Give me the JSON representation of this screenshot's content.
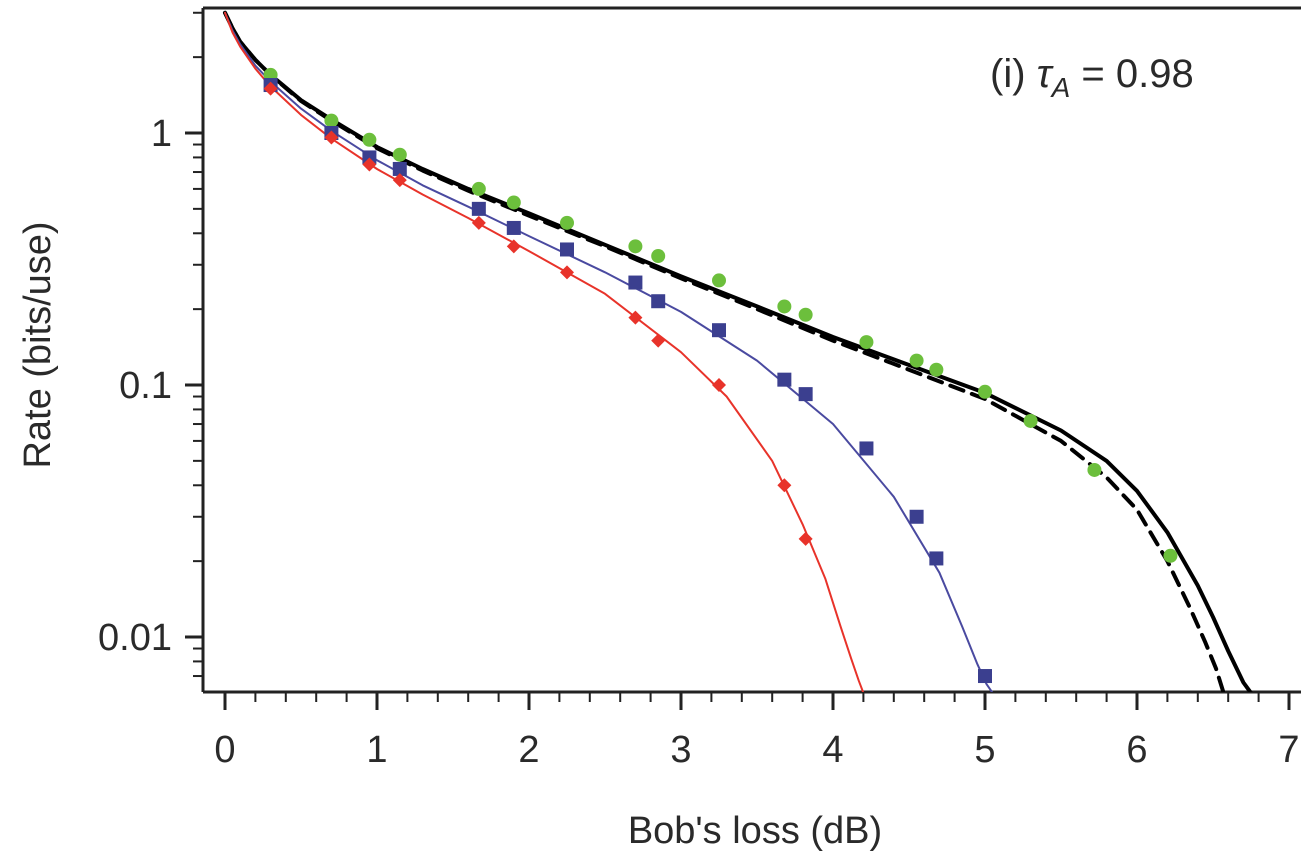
{
  "chart_data": {
    "type": "scatter",
    "title": "",
    "xlabel": "Bob's loss (dB)",
    "ylabel": "Rate (bits/use)",
    "xlim": [
      0,
      7
    ],
    "ylim": [
      0.006,
      3.0
    ],
    "yscale": "log",
    "grid": false,
    "x_ticks": [
      "0",
      "1",
      "2",
      "3",
      "4",
      "5",
      "6",
      "7"
    ],
    "y_ticks": [
      "0.01",
      "0.1",
      "1"
    ],
    "annotation": {
      "prefix": "(i) ",
      "symbol": "τ",
      "subscript": "A",
      "suffix": " = 0.98"
    },
    "series": [
      {
        "kind": "line",
        "color": "#000000",
        "dash": "solid",
        "x": [
          0.0,
          0.05,
          0.1,
          0.2,
          0.3,
          0.5,
          0.7,
          1.0,
          1.3,
          1.6,
          2.0,
          2.5,
          3.0,
          3.5,
          4.0,
          4.5,
          5.0,
          5.5,
          5.8,
          6.0,
          6.2,
          6.4,
          6.5,
          6.6,
          6.7,
          6.75
        ],
        "y": [
          3.0,
          2.6,
          2.3,
          1.95,
          1.7,
          1.35,
          1.13,
          0.88,
          0.72,
          0.6,
          0.48,
          0.36,
          0.27,
          0.205,
          0.155,
          0.12,
          0.093,
          0.066,
          0.05,
          0.038,
          0.026,
          0.016,
          0.012,
          0.0088,
          0.0066,
          0.006
        ]
      },
      {
        "kind": "line",
        "color": "#000000",
        "dash": "dashed",
        "x": [
          0.0,
          0.05,
          0.1,
          0.2,
          0.3,
          0.5,
          0.7,
          1.0,
          1.3,
          1.6,
          2.0,
          2.5,
          3.0,
          3.5,
          4.0,
          4.5,
          5.0,
          5.5,
          5.8,
          6.0,
          6.2,
          6.35,
          6.45,
          6.52,
          6.57
        ],
        "y": [
          3.0,
          2.6,
          2.3,
          1.95,
          1.7,
          1.34,
          1.12,
          0.87,
          0.71,
          0.59,
          0.47,
          0.355,
          0.265,
          0.2,
          0.15,
          0.115,
          0.088,
          0.06,
          0.043,
          0.032,
          0.02,
          0.013,
          0.0095,
          0.0075,
          0.006
        ]
      },
      {
        "kind": "line",
        "color": "#4a4aa0",
        "dash": "solid",
        "x": [
          0.0,
          0.05,
          0.1,
          0.2,
          0.3,
          0.5,
          0.7,
          1.0,
          1.3,
          1.6,
          2.0,
          2.5,
          3.0,
          3.5,
          4.0,
          4.4,
          4.7,
          4.85,
          4.95,
          5.01,
          5.05
        ],
        "y": [
          3.0,
          2.55,
          2.25,
          1.85,
          1.6,
          1.25,
          1.02,
          0.78,
          0.62,
          0.51,
          0.39,
          0.28,
          0.195,
          0.125,
          0.07,
          0.036,
          0.018,
          0.011,
          0.0078,
          0.0065,
          0.006
        ]
      },
      {
        "kind": "line",
        "color": "#e8332a",
        "dash": "solid",
        "x": [
          0.0,
          0.05,
          0.1,
          0.2,
          0.3,
          0.5,
          0.7,
          1.0,
          1.3,
          1.6,
          2.0,
          2.5,
          3.0,
          3.3,
          3.6,
          3.8,
          3.95,
          4.05,
          4.12,
          4.17,
          4.2
        ],
        "y": [
          3.0,
          2.5,
          2.2,
          1.8,
          1.53,
          1.18,
          0.95,
          0.72,
          0.57,
          0.46,
          0.34,
          0.23,
          0.135,
          0.09,
          0.05,
          0.028,
          0.017,
          0.011,
          0.0082,
          0.0067,
          0.006
        ]
      },
      {
        "kind": "points",
        "marker": "circle",
        "color": "#6cbf3c",
        "x": [
          0.3,
          0.7,
          0.95,
          1.15,
          1.67,
          1.9,
          2.25,
          2.7,
          2.85,
          3.25,
          3.68,
          3.82,
          4.22,
          4.55,
          4.68,
          5.0,
          5.3,
          5.72,
          6.22
        ],
        "y": [
          1.7,
          1.12,
          0.94,
          0.82,
          0.6,
          0.53,
          0.44,
          0.355,
          0.325,
          0.26,
          0.205,
          0.19,
          0.148,
          0.125,
          0.115,
          0.094,
          0.072,
          0.046,
          0.021
        ]
      },
      {
        "kind": "points",
        "marker": "square",
        "color": "#3b3f8f",
        "x": [
          0.3,
          0.7,
          0.95,
          1.15,
          1.67,
          1.9,
          2.25,
          2.7,
          2.85,
          3.25,
          3.68,
          3.82,
          4.22,
          4.55,
          4.68,
          5.0
        ],
        "y": [
          1.55,
          1.0,
          0.8,
          0.72,
          0.5,
          0.42,
          0.345,
          0.255,
          0.215,
          0.165,
          0.105,
          0.092,
          0.056,
          0.03,
          0.0205,
          0.007
        ]
      },
      {
        "kind": "points",
        "marker": "diamond",
        "color": "#e8332a",
        "x": [
          0.3,
          0.7,
          0.95,
          1.15,
          1.67,
          1.9,
          2.25,
          2.7,
          2.85,
          3.25,
          3.68,
          3.82
        ],
        "y": [
          1.5,
          0.96,
          0.75,
          0.65,
          0.44,
          0.355,
          0.28,
          0.185,
          0.15,
          0.1,
          0.04,
          0.0245
        ]
      }
    ]
  }
}
